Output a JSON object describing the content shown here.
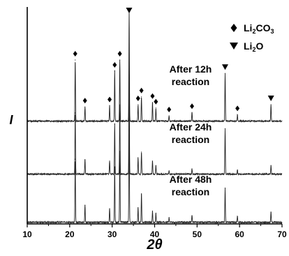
{
  "chart_data": {
    "type": "line",
    "xlabel": "2θ",
    "ylabel": "I",
    "xlim": [
      10,
      70
    ],
    "x_ticks": [
      10,
      20,
      30,
      40,
      50,
      60,
      70
    ],
    "grid": false,
    "legend_position": "top-right",
    "legend": [
      {
        "marker": "diamond",
        "label_main": "Li",
        "label_sub1": "2",
        "label_mid": "CO",
        "label_sub2": "3"
      },
      {
        "marker": "down-triangle",
        "label_main": "Li",
        "label_sub1": "2",
        "label_mid": "O",
        "label_sub2": ""
      }
    ],
    "series": [
      {
        "name_line1": "After 12h",
        "name_line2": "reaction",
        "peaks": [
          {
            "x": 21.3,
            "h": 0.55
          },
          {
            "x": 23.6,
            "h": 0.13
          },
          {
            "x": 29.4,
            "h": 0.14
          },
          {
            "x": 30.6,
            "h": 0.45
          },
          {
            "x": 31.8,
            "h": 0.55
          },
          {
            "x": 34.0,
            "h": 1.0
          },
          {
            "x": 36.1,
            "h": 0.15
          },
          {
            "x": 36.9,
            "h": 0.22
          },
          {
            "x": 39.5,
            "h": 0.17
          },
          {
            "x": 40.3,
            "h": 0.12
          },
          {
            "x": 43.4,
            "h": 0.05
          },
          {
            "x": 48.8,
            "h": 0.08
          },
          {
            "x": 56.6,
            "h": 0.43
          },
          {
            "x": 59.5,
            "h": 0.06
          },
          {
            "x": 67.4,
            "h": 0.15
          }
        ],
        "li2co3_markers": [
          21.3,
          23.6,
          29.4,
          30.6,
          31.8,
          36.1,
          36.9,
          39.5,
          40.3,
          43.4,
          48.8,
          59.5
        ],
        "li2o_markers": [
          34.0,
          56.6,
          67.4
        ]
      },
      {
        "name_line1": "After 24h",
        "name_line2": "reaction",
        "peaks": [
          {
            "x": 21.3,
            "h": 0.55
          },
          {
            "x": 23.6,
            "h": 0.13
          },
          {
            "x": 29.4,
            "h": 0.12
          },
          {
            "x": 30.6,
            "h": 0.45
          },
          {
            "x": 31.8,
            "h": 0.62
          },
          {
            "x": 34.0,
            "h": 1.0
          },
          {
            "x": 36.1,
            "h": 0.15
          },
          {
            "x": 36.9,
            "h": 0.2
          },
          {
            "x": 39.5,
            "h": 0.12
          },
          {
            "x": 40.3,
            "h": 0.08
          },
          {
            "x": 43.4,
            "h": 0.03
          },
          {
            "x": 48.8,
            "h": 0.05
          },
          {
            "x": 56.6,
            "h": 0.41
          },
          {
            "x": 59.5,
            "h": 0.04
          },
          {
            "x": 67.4,
            "h": 0.08
          }
        ],
        "li2co3_markers": [],
        "li2o_markers": []
      },
      {
        "name_line1": "After 48h",
        "name_line2": "reaction",
        "peaks": [
          {
            "x": 21.3,
            "h": 0.55
          },
          {
            "x": 23.6,
            "h": 0.15
          },
          {
            "x": 29.4,
            "h": 0.12
          },
          {
            "x": 30.6,
            "h": 0.48
          },
          {
            "x": 31.8,
            "h": 0.62
          },
          {
            "x": 34.0,
            "h": 1.0
          },
          {
            "x": 36.1,
            "h": 0.13
          },
          {
            "x": 36.9,
            "h": 0.25
          },
          {
            "x": 39.5,
            "h": 0.1
          },
          {
            "x": 40.3,
            "h": 0.08
          },
          {
            "x": 43.4,
            "h": 0.04
          },
          {
            "x": 48.8,
            "h": 0.06
          },
          {
            "x": 56.6,
            "h": 0.3
          },
          {
            "x": 59.5,
            "h": 0.05
          },
          {
            "x": 67.4,
            "h": 0.09
          }
        ],
        "li2co3_markers": [],
        "li2o_markers": []
      }
    ]
  }
}
